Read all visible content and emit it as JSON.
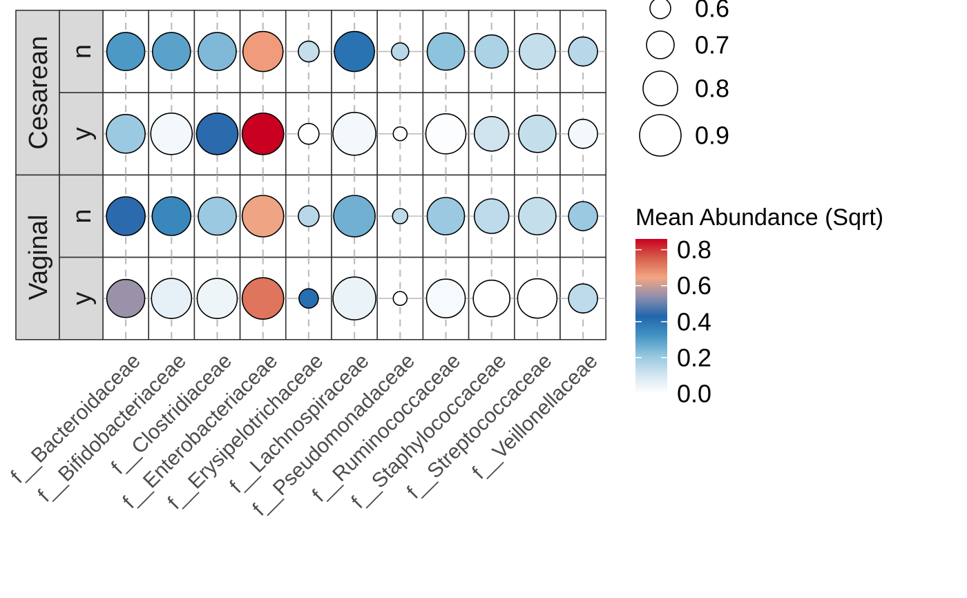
{
  "chart_data": {
    "type": "bubble-heatmap",
    "x_categories": [
      "f__Bacteroidaceae",
      "f__Bifidobacteriaceae",
      "f__Clostridiaceae",
      "f__Enterobacteriaceae",
      "f__Erysipelotrichaceae",
      "f__Lachnospiraceae",
      "f__Pseudomonadaceae",
      "f__Ruminococcaceae",
      "f__Staphylococcaceae",
      "f__Streptococcaceae",
      "f__Veillonellaceae"
    ],
    "facets": [
      {
        "group": "Cesarean",
        "sub": "n",
        "abundance": [
          0.31,
          0.29,
          0.24,
          0.66,
          0.13,
          0.4,
          0.15,
          0.22,
          0.17,
          0.13,
          0.15
        ],
        "size": [
          0.85,
          0.85,
          0.85,
          0.88,
          0.6,
          0.88,
          0.55,
          0.84,
          0.78,
          0.82,
          0.72
        ]
      },
      {
        "group": "Cesarean",
        "sub": "y",
        "abundance": [
          0.2,
          0.03,
          0.44,
          0.86,
          0.0,
          0.03,
          0.0,
          0.01,
          0.11,
          0.13,
          0.03
        ],
        "size": [
          0.86,
          0.9,
          0.9,
          0.9,
          0.6,
          0.92,
          0.5,
          0.88,
          0.8,
          0.84,
          0.72
        ]
      },
      {
        "group": "Vaginal",
        "sub": "n",
        "abundance": [
          0.44,
          0.35,
          0.2,
          0.64,
          0.15,
          0.26,
          0.14,
          0.2,
          0.14,
          0.13,
          0.2
        ],
        "size": [
          0.86,
          0.86,
          0.85,
          0.9,
          0.6,
          0.9,
          0.52,
          0.84,
          0.8,
          0.84,
          0.72
        ]
      },
      {
        "group": "Vaginal",
        "sub": "y",
        "abundance": [
          0.55,
          0.06,
          0.04,
          0.72,
          0.41,
          0.05,
          0.0,
          0.02,
          0.0,
          0.0,
          0.14
        ],
        "size": [
          0.85,
          0.88,
          0.88,
          0.9,
          0.58,
          0.92,
          0.5,
          0.86,
          0.83,
          0.87,
          0.72
        ]
      }
    ],
    "size_legend": {
      "title": "",
      "values": [
        "0.6",
        "0.7",
        "0.8",
        "0.9"
      ]
    },
    "color_legend": {
      "title": "Mean Abundance (Sqrt)",
      "ticks": [
        "0.8",
        "0.6",
        "0.4",
        "0.2",
        "0.0"
      ],
      "range": [
        0,
        0.86
      ],
      "stops": [
        "#ffffff",
        "#d1e5f0",
        "#92c5de",
        "#4393c3",
        "#2166ac",
        "#8d8fad",
        "#f4a582",
        "#d6604d",
        "#ca0020"
      ]
    },
    "colors": {
      "strip_fill": "#d9d9d9",
      "panel_border": "#333333",
      "grid": "#bdbdbd"
    }
  }
}
